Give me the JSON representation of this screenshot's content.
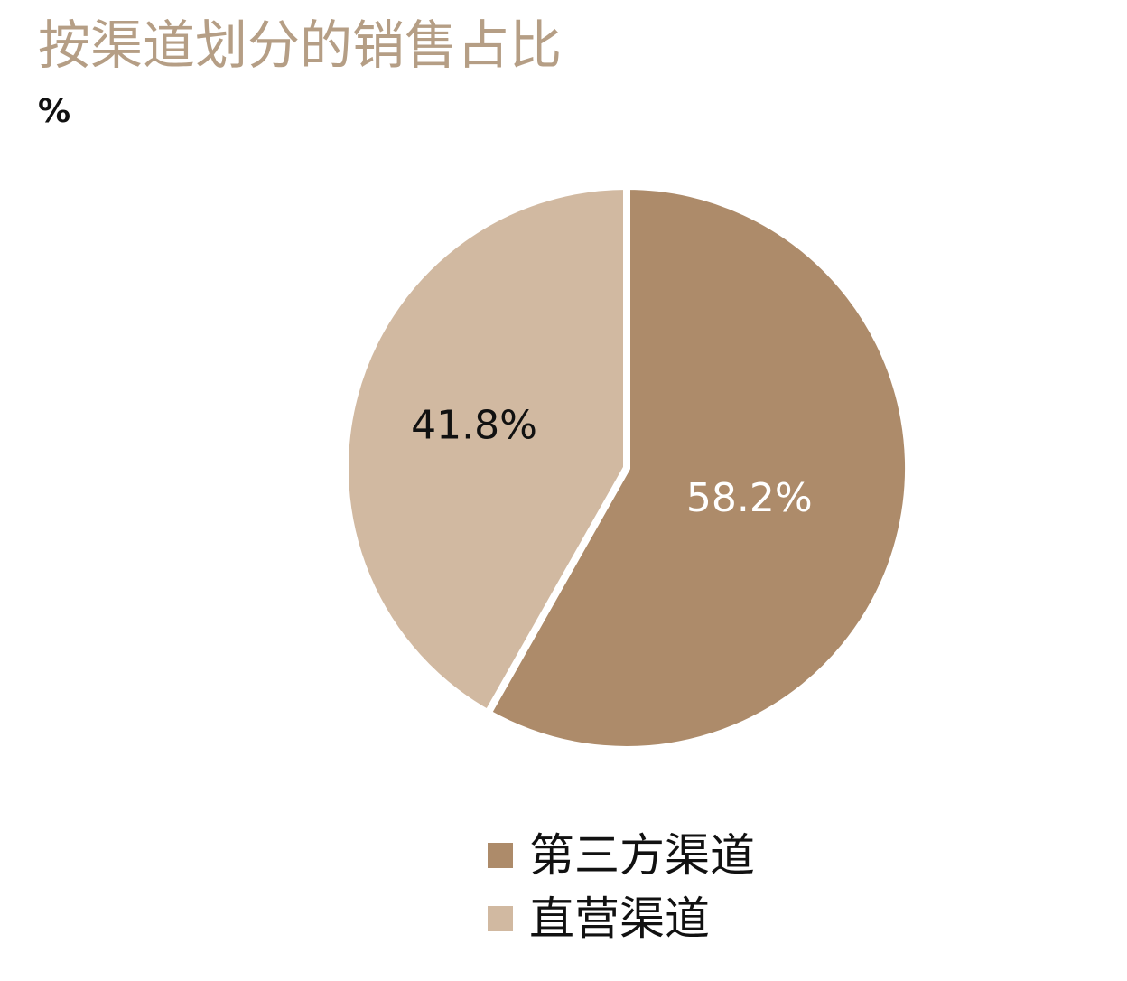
{
  "chart_data": {
    "type": "pie",
    "title": "按渠道划分的销售占比",
    "unit": "%",
    "slices": [
      {
        "label": "第三方渠道",
        "value": 58.2,
        "value_label": "58.2%",
        "color": "#ad8b6a",
        "label_color": "#ffffff"
      },
      {
        "label": "直营渠道",
        "value": 41.8,
        "value_label": "41.8%",
        "color": "#d1b9a1",
        "label_color": "#111111"
      }
    ],
    "start": "12 o'clock",
    "direction": "clockwise",
    "legend": {
      "position": "bottom",
      "items": [
        {
          "label": "第三方渠道",
          "color": "#ad8b6a"
        },
        {
          "label": "直营渠道",
          "color": "#d1b9a1"
        }
      ]
    }
  }
}
